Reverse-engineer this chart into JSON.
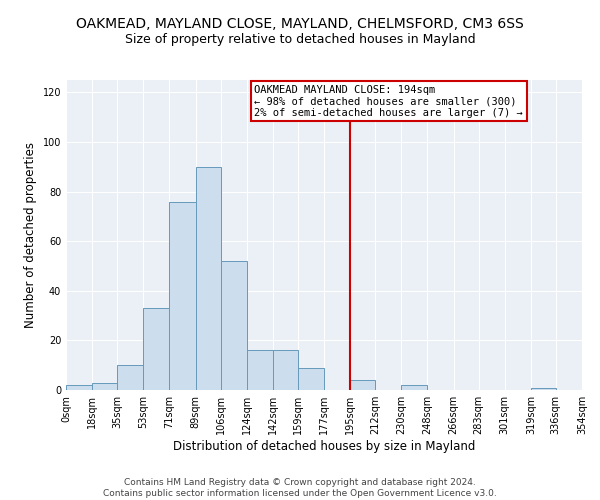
{
  "title": "OAKMEAD, MAYLAND CLOSE, MAYLAND, CHELMSFORD, CM3 6SS",
  "subtitle": "Size of property relative to detached houses in Mayland",
  "xlabel": "Distribution of detached houses by size in Mayland",
  "ylabel": "Number of detached properties",
  "bin_edges": [
    0,
    18,
    35,
    53,
    71,
    89,
    106,
    124,
    142,
    159,
    177,
    195,
    212,
    230,
    248,
    266,
    283,
    301,
    319,
    336,
    354
  ],
  "bin_labels": [
    "0sqm",
    "18sqm",
    "35sqm",
    "53sqm",
    "71sqm",
    "89sqm",
    "106sqm",
    "124sqm",
    "142sqm",
    "159sqm",
    "177sqm",
    "195sqm",
    "212sqm",
    "230sqm",
    "248sqm",
    "266sqm",
    "283sqm",
    "301sqm",
    "319sqm",
    "336sqm",
    "354sqm"
  ],
  "counts": [
    2,
    3,
    10,
    33,
    76,
    90,
    52,
    16,
    16,
    9,
    0,
    4,
    0,
    2,
    0,
    0,
    0,
    0,
    1,
    0
  ],
  "bar_color": "#ccdded",
  "bar_edge_color": "#6699bb",
  "vline_x": 195,
  "vline_color": "#cc0000",
  "annotation_title": "OAKMEAD MAYLAND CLOSE: 194sqm",
  "annotation_line1": "← 98% of detached houses are smaller (300)",
  "annotation_line2": "2% of semi-detached houses are larger (7) →",
  "annotation_box_color": "white",
  "annotation_box_edge_color": "#cc0000",
  "ylim": [
    0,
    125
  ],
  "yticks": [
    0,
    20,
    40,
    60,
    80,
    100,
    120
  ],
  "footer1": "Contains HM Land Registry data © Crown copyright and database right 2024.",
  "footer2": "Contains public sector information licensed under the Open Government Licence v3.0.",
  "plot_bg_color": "#eaf0f6",
  "grid_color": "#ffffff",
  "title_fontsize": 10,
  "subtitle_fontsize": 9,
  "xlabel_fontsize": 8.5,
  "ylabel_fontsize": 8.5,
  "tick_fontsize": 7,
  "footer_fontsize": 6.5,
  "ann_fontsize": 7.5
}
